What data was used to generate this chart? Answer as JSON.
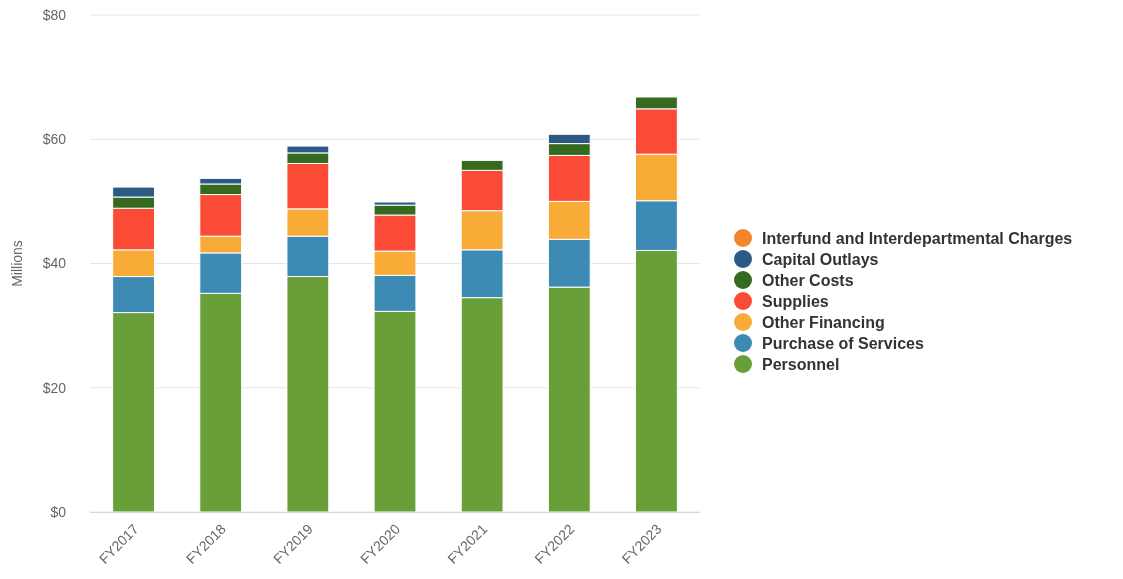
{
  "chart_data": {
    "type": "bar",
    "ylabel": "Millions",
    "stacked": true,
    "grid": "y",
    "legend": "right",
    "categories": [
      "FY2017",
      "FY2018",
      "FY2019",
      "FY2020",
      "FY2021",
      "FY2022",
      "FY2023"
    ],
    "ylim": [
      0,
      80
    ],
    "yticks": [
      {
        "value": 0,
        "label": "$0"
      },
      {
        "value": 20,
        "label": "$20"
      },
      {
        "value": 40,
        "label": "$40"
      },
      {
        "value": 60,
        "label": "$60"
      },
      {
        "value": 80,
        "label": "$80"
      }
    ],
    "series": [
      {
        "name": "Personnel",
        "color": "#689f38",
        "values": [
          32.1,
          35.2,
          37.9,
          32.3,
          34.5,
          36.2,
          42.1
        ]
      },
      {
        "name": "Purchase of Services",
        "color": "#3d8bb5",
        "values": [
          5.8,
          6.5,
          6.5,
          5.8,
          7.7,
          7.7,
          8.0
        ]
      },
      {
        "name": "Other Financing",
        "color": "#f8ab37",
        "values": [
          4.3,
          2.7,
          4.4,
          3.9,
          6.3,
          6.1,
          7.5
        ]
      },
      {
        "name": "Supplies",
        "color": "#fb4b36",
        "values": [
          6.7,
          6.7,
          7.3,
          5.8,
          6.5,
          7.4,
          7.3
        ]
      },
      {
        "name": "Other Costs",
        "color": "#356a20",
        "values": [
          1.8,
          1.7,
          1.7,
          1.6,
          1.6,
          1.9,
          1.9
        ]
      },
      {
        "name": "Capital Outlays",
        "color": "#2b5a82",
        "values": [
          1.6,
          0.9,
          1.1,
          0.5,
          null,
          1.5,
          null
        ]
      },
      {
        "name": "Interfund and Interdepartmental Charges",
        "color": "#f4842b",
        "values": [
          null,
          null,
          null,
          null,
          null,
          null,
          null
        ]
      }
    ]
  }
}
